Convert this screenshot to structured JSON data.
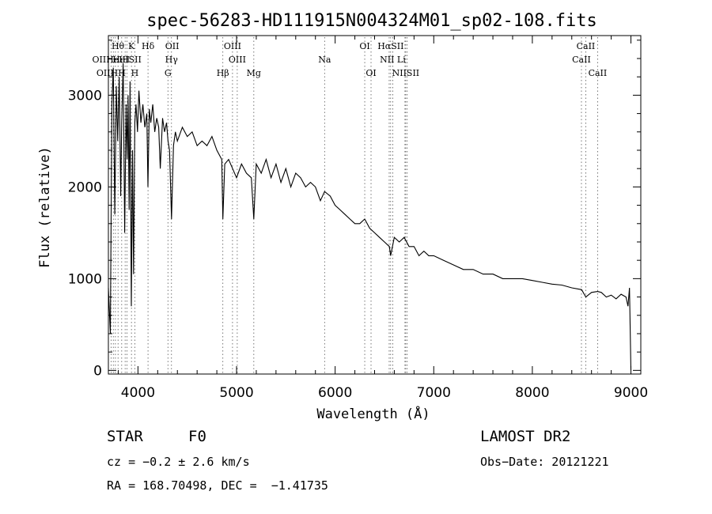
{
  "chart_data": {
    "type": "line",
    "title": "spec-56283-HD111915N004324M01_sp02-108.fits",
    "xlabel": "Wavelength (Å)",
    "ylabel": "Flux (relative)",
    "xlim": [
      3700,
      9100
    ],
    "ylim": [
      -40,
      3650
    ],
    "xticks": [
      4000,
      5000,
      6000,
      7000,
      8000,
      9000
    ],
    "yticks": [
      0,
      1000,
      2000,
      3000
    ],
    "grid": false,
    "series": [
      {
        "x": [
          3700,
          3720,
          3735,
          3750,
          3765,
          3780,
          3795,
          3810,
          3825,
          3835,
          3850,
          3865,
          3880,
          3890,
          3900,
          3910,
          3920,
          3933,
          3945,
          3955,
          3968,
          3980,
          3995,
          4010,
          4030,
          4050,
          4070,
          4090,
          4101,
          4115,
          4130,
          4150,
          4170,
          4190,
          4210,
          4226,
          4250,
          4270,
          4290,
          4305,
          4320,
          4340,
          4360,
          4380,
          4400,
          4450,
          4500,
          4550,
          4600,
          4650,
          4700,
          4750,
          4800,
          4850,
          4861,
          4880,
          4920,
          4960,
          5000,
          5050,
          5100,
          5150,
          5175,
          5200,
          5250,
          5300,
          5350,
          5400,
          5450,
          5500,
          5550,
          5600,
          5650,
          5700,
          5750,
          5800,
          5850,
          5893,
          5950,
          6000,
          6050,
          6100,
          6150,
          6200,
          6250,
          6300,
          6350,
          6400,
          6450,
          6500,
          6550,
          6563,
          6600,
          6650,
          6700,
          6750,
          6800,
          6850,
          6900,
          6950,
          7000,
          7100,
          7200,
          7300,
          7400,
          7500,
          7600,
          7700,
          7800,
          7900,
          8000,
          8100,
          8200,
          8300,
          8400,
          8500,
          8542,
          8600,
          8662,
          8700,
          8750,
          8800,
          8850,
          8900,
          8950,
          8970,
          8985,
          9000
        ],
        "y": [
          900,
          400,
          2900,
          3300,
          1700,
          3100,
          2500,
          3200,
          1900,
          2700,
          3350,
          1500,
          2900,
          2300,
          3000,
          1750,
          3150,
          700,
          2400,
          1050,
          2700,
          2900,
          2600,
          3050,
          2700,
          2900,
          2650,
          2800,
          2000,
          2850,
          2700,
          2900,
          2600,
          2750,
          2650,
          2200,
          2750,
          2600,
          2700,
          2500,
          2400,
          1650,
          2450,
          2600,
          2500,
          2650,
          2550,
          2600,
          2450,
          2500,
          2450,
          2550,
          2400,
          2300,
          1650,
          2250,
          2300,
          2200,
          2100,
          2250,
          2150,
          2100,
          1650,
          2250,
          2150,
          2300,
          2100,
          2250,
          2050,
          2200,
          2000,
          2150,
          2100,
          2000,
          2050,
          2000,
          1850,
          1950,
          1900,
          1800,
          1750,
          1700,
          1650,
          1600,
          1600,
          1650,
          1550,
          1500,
          1450,
          1400,
          1350,
          1250,
          1450,
          1400,
          1450,
          1350,
          1350,
          1250,
          1300,
          1250,
          1250,
          1200,
          1150,
          1100,
          1100,
          1050,
          1050,
          1000,
          1000,
          1000,
          980,
          960,
          940,
          930,
          900,
          880,
          800,
          850,
          860,
          850,
          800,
          820,
          780,
          830,
          800,
          700,
          900,
          0
        ]
      }
    ],
    "line_markers": [
      {
        "label": "Hθ",
        "x": 3797,
        "row": 0
      },
      {
        "label": "K",
        "x": 3934,
        "row": 0
      },
      {
        "label": "Hδ",
        "x": 4102,
        "row": 0
      },
      {
        "label": "OII",
        "x": 4347,
        "row": 0
      },
      {
        "label": "OIII",
        "x": 4959,
        "row": 0
      },
      {
        "label": "OI",
        "x": 6300,
        "row": 0
      },
      {
        "label": "HαSII",
        "x": 6563,
        "row": 0
      },
      {
        "label": "CaII",
        "x": 8542,
        "row": 0
      },
      {
        "label": "OIIHeIH",
        "x": 3727,
        "row": 1
      },
      {
        "label": "HeISII",
        "x": 3889,
        "row": 1
      },
      {
        "label": "Hγ",
        "x": 4340,
        "row": 1
      },
      {
        "label": "OIII",
        "x": 5007,
        "row": 1
      },
      {
        "label": "Na",
        "x": 5893,
        "row": 1
      },
      {
        "label": "NII Li",
        "x": 6584,
        "row": 1
      },
      {
        "label": "CaII",
        "x": 8498,
        "row": 1
      },
      {
        "label": "OIIHH",
        "x": 3727,
        "row": 2
      },
      {
        "label": "H",
        "x": 3968,
        "row": 2
      },
      {
        "label": "G",
        "x": 4304,
        "row": 2
      },
      {
        "label": "Hβ",
        "x": 4861,
        "row": 2
      },
      {
        "label": "Mg",
        "x": 5175,
        "row": 2
      },
      {
        "label": "OI",
        "x": 6364,
        "row": 2
      },
      {
        "label": "NIISII",
        "x": 6716,
        "row": 2
      },
      {
        "label": "CaII",
        "x": 8662,
        "row": 2
      }
    ],
    "marker_lines": [
      3727,
      3750,
      3771,
      3798,
      3835,
      3870,
      3889,
      3934,
      3968,
      4102,
      4304,
      4340,
      4861,
      4959,
      5007,
      5175,
      5893,
      6300,
      6364,
      6548,
      6563,
      6584,
      6708,
      6716,
      6731,
      8498,
      8542,
      8662
    ]
  },
  "info": {
    "object_class": "STAR",
    "subclass": "F0",
    "survey": "LAMOST DR2",
    "redshift": "cz = −0.2 ± 2.6 km/s",
    "obs_date": "Obs−Date: 20121221",
    "coords": "RA = 168.70498, DEC =  −1.41735"
  }
}
